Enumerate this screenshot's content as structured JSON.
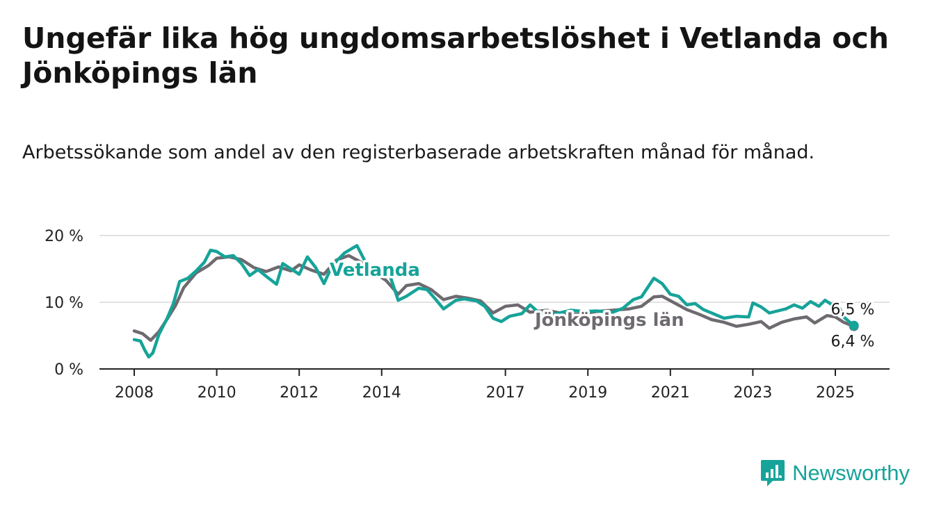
{
  "title": "Ungefär lika hög ungdomsarbetslöshet i Vetlanda och Jönköpings län",
  "subtitle": "Arbetssökande som andel av den registerbaserade arbetskraften månad för månad.",
  "brand": {
    "name": "Newsworthy",
    "logo_icon": "bar-chart-bubble-icon"
  },
  "colors": {
    "vetlanda": "#16A399",
    "lan": "#6E6A70",
    "grid": "#d9d9d9",
    "axis": "#222222"
  },
  "chart_data": {
    "type": "line",
    "x_unit": "year",
    "ylim": [
      0,
      20
    ],
    "xlim": [
      2008,
      2026.3
    ],
    "y_ticks": [
      {
        "value": 0,
        "label": "0 %"
      },
      {
        "value": 10,
        "label": "10 %"
      },
      {
        "value": 20,
        "label": "20 %"
      }
    ],
    "x_ticks": [
      {
        "value": 2008,
        "label": "2008"
      },
      {
        "value": 2010,
        "label": "2010"
      },
      {
        "value": 2012,
        "label": "2012"
      },
      {
        "value": 2014,
        "label": "2014"
      },
      {
        "value": 2017,
        "label": "2017"
      },
      {
        "value": 2019,
        "label": "2019"
      },
      {
        "value": 2021,
        "label": "2021"
      },
      {
        "value": 2023,
        "label": "2023"
      },
      {
        "value": 2025,
        "label": "2025"
      }
    ],
    "series": [
      {
        "name": "Jönköpings län",
        "color": "#6E6A70",
        "end_label": "6,4 %",
        "points": [
          [
            2008,
            5.7
          ],
          [
            2008.2,
            5.3
          ],
          [
            2008.4,
            4.3
          ],
          [
            2008.6,
            5.6
          ],
          [
            2008.8,
            7.5
          ],
          [
            2009,
            9.5
          ],
          [
            2009.2,
            12.2
          ],
          [
            2009.5,
            14.4
          ],
          [
            2009.8,
            15.5
          ],
          [
            2010,
            16.6
          ],
          [
            2010.3,
            16.8
          ],
          [
            2010.6,
            16.4
          ],
          [
            2010.9,
            15.2
          ],
          [
            2011.2,
            14.6
          ],
          [
            2011.5,
            15.3
          ],
          [
            2011.8,
            14.7
          ],
          [
            2012,
            15.6
          ],
          [
            2012.3,
            14.8
          ],
          [
            2012.6,
            14.2
          ],
          [
            2012.9,
            16.3
          ],
          [
            2013.2,
            17.0
          ],
          [
            2013.5,
            16.0
          ],
          [
            2013.8,
            14.5
          ],
          [
            2014.1,
            13.3
          ],
          [
            2014.4,
            11.2
          ],
          [
            2014.6,
            12.5
          ],
          [
            2014.9,
            12.8
          ],
          [
            2015.2,
            11.9
          ],
          [
            2015.5,
            10.4
          ],
          [
            2015.8,
            10.9
          ],
          [
            2016.1,
            10.6
          ],
          [
            2016.4,
            10.2
          ],
          [
            2016.7,
            8.4
          ],
          [
            2017,
            9.4
          ],
          [
            2017.3,
            9.6
          ],
          [
            2017.6,
            8.5
          ],
          [
            2018,
            8.8
          ],
          [
            2018.4,
            8.3
          ],
          [
            2018.8,
            8.2
          ],
          [
            2019.2,
            8.6
          ],
          [
            2019.6,
            8.8
          ],
          [
            2020,
            9.0
          ],
          [
            2020.3,
            9.4
          ],
          [
            2020.6,
            10.8
          ],
          [
            2020.8,
            10.9
          ],
          [
            2021.1,
            9.9
          ],
          [
            2021.4,
            8.9
          ],
          [
            2021.7,
            8.2
          ],
          [
            2022,
            7.4
          ],
          [
            2022.3,
            7.0
          ],
          [
            2022.6,
            6.4
          ],
          [
            2022.9,
            6.7
          ],
          [
            2023.2,
            7.1
          ],
          [
            2023.4,
            6.1
          ],
          [
            2023.7,
            7.0
          ],
          [
            2024,
            7.5
          ],
          [
            2024.3,
            7.8
          ],
          [
            2024.5,
            6.9
          ],
          [
            2024.8,
            8.0
          ],
          [
            2025,
            7.8
          ],
          [
            2025.2,
            7.0
          ],
          [
            2025.45,
            6.4
          ]
        ]
      },
      {
        "name": "Vetlanda",
        "color": "#16A399",
        "end_label": "6,5 %",
        "points": [
          [
            2008,
            4.4
          ],
          [
            2008.15,
            4.2
          ],
          [
            2008.25,
            2.9
          ],
          [
            2008.35,
            1.8
          ],
          [
            2008.45,
            2.4
          ],
          [
            2008.6,
            5.2
          ],
          [
            2008.8,
            7.6
          ],
          [
            2008.95,
            9.8
          ],
          [
            2009.1,
            13.1
          ],
          [
            2009.3,
            13.6
          ],
          [
            2009.5,
            14.7
          ],
          [
            2009.7,
            16.0
          ],
          [
            2009.85,
            17.8
          ],
          [
            2010,
            17.6
          ],
          [
            2010.2,
            16.8
          ],
          [
            2010.4,
            17.0
          ],
          [
            2010.6,
            15.8
          ],
          [
            2010.8,
            14.0
          ],
          [
            2011,
            14.9
          ],
          [
            2011.2,
            13.9
          ],
          [
            2011.45,
            12.7
          ],
          [
            2011.6,
            15.8
          ],
          [
            2011.8,
            15.0
          ],
          [
            2012,
            14.2
          ],
          [
            2012.2,
            16.8
          ],
          [
            2012.4,
            15.2
          ],
          [
            2012.6,
            12.8
          ],
          [
            2012.8,
            15.5
          ],
          [
            2013.1,
            17.4
          ],
          [
            2013.4,
            18.5
          ],
          [
            2013.6,
            16.1
          ],
          [
            2013.9,
            14.2
          ],
          [
            2014.2,
            14.0
          ],
          [
            2014.4,
            10.3
          ],
          [
            2014.6,
            10.9
          ],
          [
            2014.9,
            12.1
          ],
          [
            2015.1,
            11.9
          ],
          [
            2015.3,
            10.5
          ],
          [
            2015.5,
            9.0
          ],
          [
            2015.8,
            10.3
          ],
          [
            2016,
            10.5
          ],
          [
            2016.3,
            10.2
          ],
          [
            2016.5,
            9.4
          ],
          [
            2016.7,
            7.6
          ],
          [
            2016.9,
            7.1
          ],
          [
            2017.1,
            7.9
          ],
          [
            2017.4,
            8.3
          ],
          [
            2017.6,
            9.6
          ],
          [
            2017.8,
            8.5
          ],
          [
            2018,
            8.0
          ],
          [
            2018.3,
            8.4
          ],
          [
            2018.6,
            8.8
          ],
          [
            2018.9,
            8.6
          ],
          [
            2019.2,
            8.7
          ],
          [
            2019.6,
            8.5
          ],
          [
            2019.85,
            9.1
          ],
          [
            2020.1,
            10.4
          ],
          [
            2020.3,
            10.8
          ],
          [
            2020.6,
            13.6
          ],
          [
            2020.8,
            12.8
          ],
          [
            2021,
            11.2
          ],
          [
            2021.2,
            10.9
          ],
          [
            2021.4,
            9.6
          ],
          [
            2021.6,
            9.8
          ],
          [
            2021.8,
            8.9
          ],
          [
            2022,
            8.4
          ],
          [
            2022.3,
            7.6
          ],
          [
            2022.6,
            7.9
          ],
          [
            2022.9,
            7.8
          ],
          [
            2023,
            9.9
          ],
          [
            2023.2,
            9.3
          ],
          [
            2023.4,
            8.4
          ],
          [
            2023.6,
            8.7
          ],
          [
            2023.8,
            9.0
          ],
          [
            2024,
            9.6
          ],
          [
            2024.2,
            9.1
          ],
          [
            2024.4,
            10.1
          ],
          [
            2024.6,
            9.4
          ],
          [
            2024.75,
            10.3
          ],
          [
            2024.9,
            9.7
          ],
          [
            2025.05,
            9.8
          ],
          [
            2025.2,
            7.8
          ],
          [
            2025.45,
            6.5
          ]
        ]
      }
    ],
    "annotations": [
      {
        "series": "Vetlanda",
        "text": "Vetlanda",
        "x": 2013.9,
        "y": 14.2
      },
      {
        "series": "Jönköpings län",
        "text": "Jönköpings län",
        "x": 2019.3,
        "y": 7.3
      }
    ]
  }
}
